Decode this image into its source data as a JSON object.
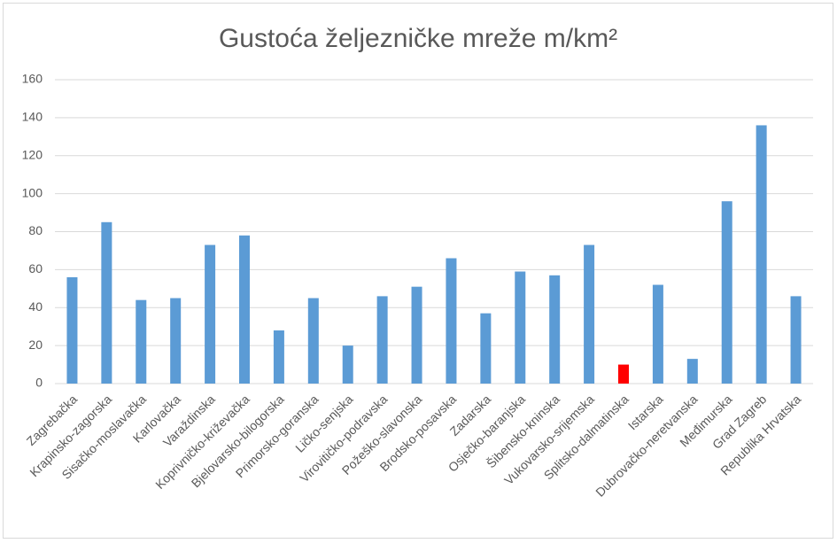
{
  "chart_data": {
    "type": "bar",
    "title": "Gustoća željezničke mreže m/km²",
    "categories": [
      "Zagrebačka",
      "Krapinsko-zagorska",
      "Sisačko-moslavačka",
      "Karlovačka",
      "Varaždinska",
      "Koprivničko-križevačka",
      "Bjelovarsko-bilogorska",
      "Primorsko-goranska",
      "Ličko-senjska",
      "Virovitičko-podravska",
      "Požeško-slavonska",
      "Brodsko-posavska",
      "Zadarska",
      "Osječko-baranjska",
      "Šibensko-kninska",
      "Vukovarsko-srijemska",
      "Splitsko-dalmatinska",
      "Istarska",
      "Dubrovačko-neretvanska",
      "Međimurska",
      "Grad Zagreb",
      "Republika Hrvatska"
    ],
    "values": [
      56,
      85,
      44,
      45,
      73,
      78,
      28,
      45,
      20,
      46,
      51,
      66,
      37,
      59,
      57,
      73,
      10,
      52,
      13,
      96,
      136,
      46
    ],
    "colors": [
      "#5b9bd5",
      "#5b9bd5",
      "#5b9bd5",
      "#5b9bd5",
      "#5b9bd5",
      "#5b9bd5",
      "#5b9bd5",
      "#5b9bd5",
      "#5b9bd5",
      "#5b9bd5",
      "#5b9bd5",
      "#5b9bd5",
      "#5b9bd5",
      "#5b9bd5",
      "#5b9bd5",
      "#5b9bd5",
      "#ff0000",
      "#5b9bd5",
      "#5b9bd5",
      "#5b9bd5",
      "#5b9bd5",
      "#5b9bd5"
    ],
    "ylim": [
      0,
      160
    ],
    "yticks": [
      0,
      20,
      40,
      60,
      80,
      100,
      120,
      140,
      160
    ],
    "grid": true
  }
}
